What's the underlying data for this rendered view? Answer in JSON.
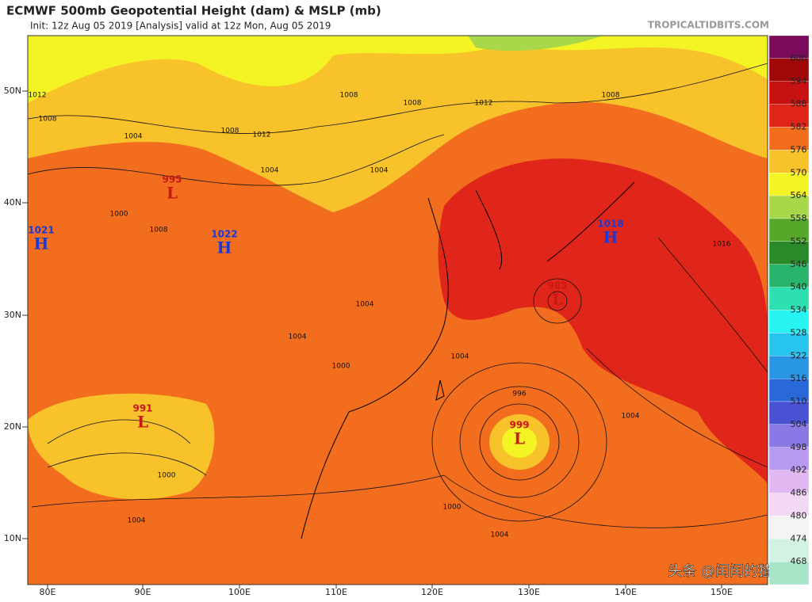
{
  "header": {
    "title": "ECMWF 500mb Geopotential Height (dam) & MSLP (mb)",
    "subtitle": "Init: 12z Aug 05 2019   [Analysis]   valid at 12z Mon, Aug 05 2019",
    "source": "TROPICALTIDBITS.COM"
  },
  "colorbar": {
    "levels": [
      600,
      594,
      588,
      582,
      576,
      570,
      564,
      558,
      552,
      546,
      540,
      534,
      528,
      522,
      516,
      510,
      504,
      498,
      492,
      486,
      480,
      474,
      468
    ],
    "colors": [
      "#7a0a5a",
      "#a00808",
      "#c81212",
      "#e0261a",
      "#f26e1e",
      "#f8c22a",
      "#f4f424",
      "#a8d84a",
      "#56a82a",
      "#2a8a2a",
      "#28b46a",
      "#2ce0b0",
      "#28f4f4",
      "#28c4f0",
      "#2896e4",
      "#2868d8",
      "#4a52d4",
      "#8a78e4",
      "#b89af0",
      "#e2b8f2",
      "#f2d8f2",
      "#f4f4f4",
      "#d2f2e2",
      "#a8e4c8"
    ]
  },
  "axes": {
    "lat_labels": [
      "50N",
      "40N",
      "30N",
      "20N",
      "10N"
    ],
    "lon_labels": [
      "80E",
      "90E",
      "100E",
      "110E",
      "120E",
      "130E",
      "140E",
      "150E"
    ]
  },
  "centers": [
    {
      "kind": "H",
      "pressure": "1021"
    },
    {
      "kind": "H",
      "pressure": "1022"
    },
    {
      "kind": "H",
      "pressure": "1018"
    },
    {
      "kind": "L",
      "pressure": "995"
    },
    {
      "kind": "L",
      "pressure": "991"
    },
    {
      "kind": "L",
      "pressure": "999"
    },
    {
      "kind": "L",
      "pressure": "983"
    }
  ],
  "contour_labels": [
    "1012",
    "1008",
    "1004",
    "1008",
    "1012",
    "1008",
    "1004",
    "1004",
    "1000",
    "1008",
    "1004",
    "1004",
    "1000",
    "996",
    "1000",
    "1004",
    "1004",
    "1000",
    "1004",
    "1016",
    "1008",
    "1008",
    "1004",
    "1012"
  ],
  "footer": {
    "watermark": "头条 @闰闰的猹科学"
  }
}
